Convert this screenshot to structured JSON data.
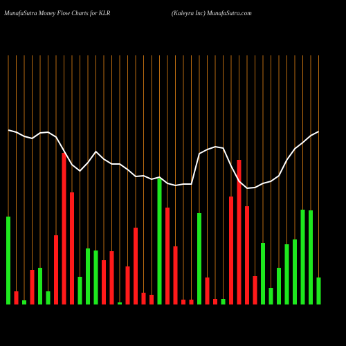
{
  "chart_data": {
    "type": "money-flow",
    "title": "MunafaSutra  Money Flow  Charts for KLR",
    "subtitle": "(Kaleyra  Inc) MunafaSutra.com",
    "ylim": [
      0,
      360
    ],
    "grid_color": "#b86a10",
    "bars": {
      "values": [
        127,
        19,
        6,
        50,
        53,
        19,
        100,
        219,
        162,
        40,
        81,
        78,
        64,
        77,
        3,
        55,
        111,
        17,
        14,
        182,
        140,
        84,
        7,
        7,
        132,
        39,
        8,
        8,
        156,
        209,
        142,
        41,
        89,
        24,
        53,
        87,
        94,
        137,
        136,
        39
      ],
      "colors": [
        "#1ee81e",
        "#ff1a1a",
        "#1ee81e",
        "#ff1a1a",
        "#1ee81e",
        "#1ee81e",
        "#ff1a1a",
        "#ff1a1a",
        "#ff1a1a",
        "#1ee81e",
        "#1ee81e",
        "#1ee81e",
        "#ff1a1a",
        "#ff1a1a",
        "#1ee81e",
        "#ff1a1a",
        "#ff1a1a",
        "#ff1a1a",
        "#ff1a1a",
        "#1ee81e",
        "#ff1a1a",
        "#ff1a1a",
        "#ff1a1a",
        "#ff1a1a",
        "#1ee81e",
        "#ff1a1a",
        "#ff1a1a",
        "#1ee81e",
        "#ff1a1a",
        "#ff1a1a",
        "#ff1a1a",
        "#ff1a1a",
        "#1ee81e",
        "#1ee81e",
        "#1ee81e",
        "#1ee81e",
        "#1ee81e",
        "#1ee81e",
        "#1ee81e",
        "#1ee81e"
      ]
    },
    "line": {
      "color": "#ffffff",
      "values": [
        252,
        249,
        243,
        240,
        248,
        249,
        242,
        222,
        202,
        193,
        205,
        221,
        210,
        203,
        203,
        195,
        185,
        186,
        181,
        184,
        175,
        172,
        174,
        174,
        218,
        224,
        228,
        226,
        200,
        178,
        168,
        169,
        175,
        178,
        186,
        209,
        225,
        234,
        244,
        250
      ]
    }
  }
}
